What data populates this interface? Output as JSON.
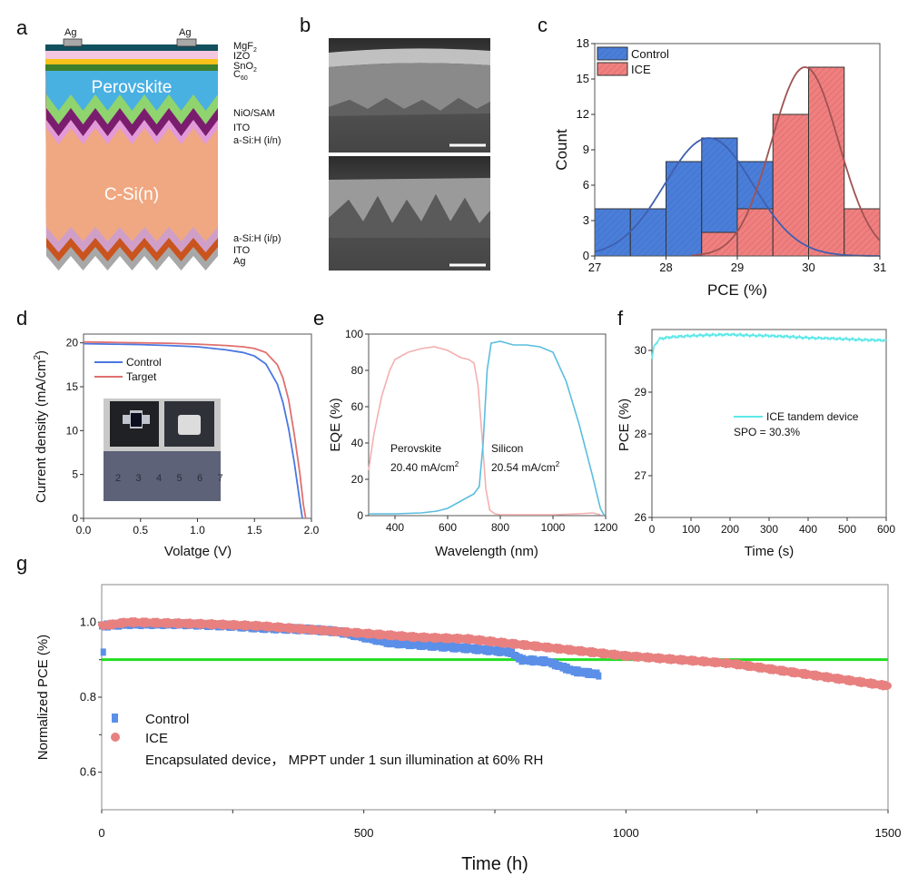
{
  "panels": {
    "a": {
      "letter": "a"
    },
    "b": {
      "letter": "b"
    },
    "c": {
      "letter": "c"
    },
    "d": {
      "letter": "d"
    },
    "e": {
      "letter": "e"
    },
    "f": {
      "letter": "f"
    },
    "g": {
      "letter": "g"
    }
  },
  "diagram_a": {
    "contacts": [
      "Ag",
      "Ag"
    ],
    "center_labels": {
      "perovskite": "Perovskite",
      "silicon": "C-Si(n)"
    },
    "layer_labels": [
      {
        "main": "MgF",
        "sub": "2"
      },
      {
        "main": "IZO",
        "sub": ""
      },
      {
        "main": "SnO",
        "sub": "2"
      },
      {
        "main": "C",
        "sub": "60"
      },
      {
        "main": "NiO/SAM",
        "sub": ""
      },
      {
        "main": "ITO",
        "sub": ""
      },
      {
        "main": "a-Si:H (i/n)",
        "sub": ""
      },
      {
        "main": "a-Si:H (i/p)",
        "sub": ""
      },
      {
        "main": "ITO",
        "sub": ""
      },
      {
        "main": "Ag",
        "sub": ""
      }
    ],
    "colors": {
      "mgf2": "#11505e",
      "izo": "#f4c6df",
      "sno2": "#f8c21a",
      "c60": "#3e7f2c",
      "perovskite": "#49b0e2",
      "nio_sam": "#8fd46e",
      "ito_top": "#7b1d6e",
      "asi_in": "#e29ad8",
      "csi": "#f0a882",
      "asi_ip": "#cf9fc8",
      "ito_bottom": "#c9541e",
      "ag": "#a8a8a8"
    }
  },
  "chart_data": [
    {
      "panel": "c",
      "type": "bar",
      "xlabel": "PCE (%)",
      "ylabel": "Count",
      "xlim": [
        27,
        31
      ],
      "ylim": [
        0,
        18
      ],
      "xticks": [
        27,
        28,
        29,
        30,
        31
      ],
      "yticks": [
        0,
        3,
        6,
        9,
        12,
        15,
        18
      ],
      "legend_placement": "top-left",
      "series": [
        {
          "name": "Control",
          "color": "#4a7ed8",
          "bin_edges": [
            27,
            27.5,
            28,
            28.5,
            29,
            29.5
          ],
          "counts": [
            4,
            4,
            8,
            10,
            8
          ],
          "fit": {
            "mean": 28.6,
            "sigma": 0.62,
            "peak": 10,
            "color": "#3f5fb0"
          }
        },
        {
          "name": "ICE",
          "color": "#f08080",
          "hatched": true,
          "bin_edges": [
            28.5,
            29,
            29.5,
            30,
            30.5,
            31
          ],
          "counts": [
            2,
            4,
            12,
            16,
            4
          ],
          "fit": {
            "mean": 29.95,
            "sigma": 0.47,
            "peak": 16,
            "color": "#a05252"
          }
        }
      ]
    },
    {
      "panel": "d",
      "type": "line",
      "xlabel": "Volatge (V)",
      "ylabel": {
        "main": "Current density (mA/cm",
        "sup": "2",
        "end": ")"
      },
      "xlim": [
        0,
        2.0
      ],
      "ylim": [
        0,
        21
      ],
      "xticks": [
        "0.0",
        "0.5",
        "1.0",
        "1.5",
        "2.0"
      ],
      "yticks": [
        0,
        5,
        10,
        15,
        20
      ],
      "legend_placement": "top-left",
      "series": [
        {
          "name": "Control",
          "color": "#4a78e0",
          "x": [
            0,
            0.25,
            0.5,
            0.75,
            1.0,
            1.25,
            1.4,
            1.5,
            1.6,
            1.7,
            1.75,
            1.8,
            1.85,
            1.9,
            1.92
          ],
          "y": [
            19.9,
            19.85,
            19.8,
            19.7,
            19.55,
            19.2,
            18.9,
            18.5,
            17.6,
            15.3,
            13.2,
            10.2,
            6.3,
            1.8,
            0
          ]
        },
        {
          "name": "Target",
          "color": "#e07070",
          "x": [
            0,
            0.25,
            0.5,
            0.75,
            1.0,
            1.25,
            1.4,
            1.5,
            1.6,
            1.7,
            1.75,
            1.8,
            1.85,
            1.9,
            1.93,
            1.95
          ],
          "y": [
            20.1,
            20.05,
            20.0,
            19.95,
            19.85,
            19.7,
            19.55,
            19.35,
            18.9,
            17.5,
            16.0,
            13.5,
            9.5,
            5.0,
            1.5,
            0
          ]
        }
      ],
      "inset_photo": {
        "ruler_numbers": [
          "2",
          "3",
          "4",
          "5",
          "6",
          "7"
        ]
      }
    },
    {
      "panel": "e",
      "type": "line",
      "xlabel": "Wavelength (nm)",
      "ylabel": "EQE (%)",
      "xlim": [
        300,
        1200
      ],
      "ylim": [
        0,
        100
      ],
      "xticks": [
        400,
        600,
        800,
        1000,
        1200
      ],
      "yticks": [
        0,
        20,
        40,
        60,
        80,
        100
      ],
      "annotations": [
        {
          "name": "Perovskite",
          "value": "20.40 mA/cm",
          "sup": "2"
        },
        {
          "name": "Silicon",
          "value": "20.54 mA/cm",
          "sup": "2"
        }
      ],
      "series": [
        {
          "name": "Perovskite",
          "color": "#f4b0b0",
          "x": [
            300,
            320,
            350,
            380,
            400,
            450,
            500,
            550,
            600,
            650,
            680,
            700,
            715,
            730,
            745,
            760,
            780,
            800,
            900,
            1000,
            1100,
            1150,
            1180
          ],
          "y": [
            25,
            45,
            66,
            80,
            86,
            90,
            92,
            93,
            91,
            87,
            86,
            84,
            72,
            45,
            15,
            3,
            1,
            0.5,
            0.5,
            0.5,
            1,
            1.5,
            0.5
          ]
        },
        {
          "name": "Silicon",
          "color": "#5bbde0",
          "x": [
            300,
            400,
            500,
            560,
            600,
            650,
            700,
            720,
            735,
            750,
            765,
            800,
            850,
            900,
            950,
            1000,
            1050,
            1100,
            1150,
            1180,
            1195
          ],
          "y": [
            1,
            1,
            1.5,
            2.5,
            4,
            8,
            12,
            16,
            40,
            80,
            95,
            96,
            94,
            94,
            93,
            90,
            74,
            50,
            22,
            4,
            0
          ]
        }
      ]
    },
    {
      "panel": "f",
      "type": "line",
      "xlabel": "Time (s)",
      "ylabel": "PCE (%)",
      "xlim": [
        0,
        600
      ],
      "ylim": [
        26,
        30.5
      ],
      "xticks": [
        0,
        100,
        200,
        300,
        400,
        500,
        600
      ],
      "yticks": [
        26,
        27,
        28,
        29,
        30
      ],
      "series": [
        {
          "name": "ICE tandem device",
          "color": "#5fe8e8",
          "x": [
            0,
            5,
            20,
            50,
            100,
            150,
            200,
            250,
            300,
            350,
            400,
            450,
            500,
            550,
            600
          ],
          "y": [
            29.8,
            30.1,
            30.28,
            30.32,
            30.35,
            30.37,
            30.38,
            30.36,
            30.35,
            30.33,
            30.3,
            30.29,
            30.27,
            30.25,
            30.24
          ]
        }
      ],
      "annotation": "SPO = 30.3%"
    },
    {
      "panel": "g",
      "type": "scatter",
      "xlabel": "Time (h)",
      "ylabel": "Normalized PCE (%)",
      "xlim": [
        0,
        1500
      ],
      "ylim": [
        0.5,
        1.1
      ],
      "xticks": [
        0,
        500,
        1000,
        1500
      ],
      "yticks": [
        "0.6",
        "0.8",
        "1.0"
      ],
      "reference_line": {
        "y": 0.9,
        "color": "#22dd22"
      },
      "note": "Encapsulated device， MPPT under 1 sun illumination at 60% RH",
      "legend_placement": "lower-left",
      "series": [
        {
          "name": "Control",
          "marker": "square",
          "color": "#5b8fe8",
          "x": [
            0,
            50,
            150,
            250,
            300,
            400,
            450,
            500,
            550,
            600,
            700,
            780,
            800,
            850,
            900,
            950
          ],
          "y": [
            0.99,
            0.995,
            0.995,
            0.99,
            0.985,
            0.98,
            0.975,
            0.96,
            0.945,
            0.94,
            0.93,
            0.92,
            0.9,
            0.895,
            0.87,
            0.86
          ]
        },
        {
          "name": "ICE",
          "marker": "circle",
          "color": "#e88080",
          "x": [
            0,
            50,
            200,
            300,
            400,
            500,
            600,
            700,
            800,
            900,
            1000,
            1100,
            1200,
            1300,
            1400,
            1500
          ],
          "y": [
            0.99,
            1.0,
            0.995,
            0.99,
            0.98,
            0.97,
            0.96,
            0.955,
            0.94,
            0.925,
            0.91,
            0.9,
            0.89,
            0.87,
            0.85,
            0.83
          ]
        }
      ]
    }
  ]
}
